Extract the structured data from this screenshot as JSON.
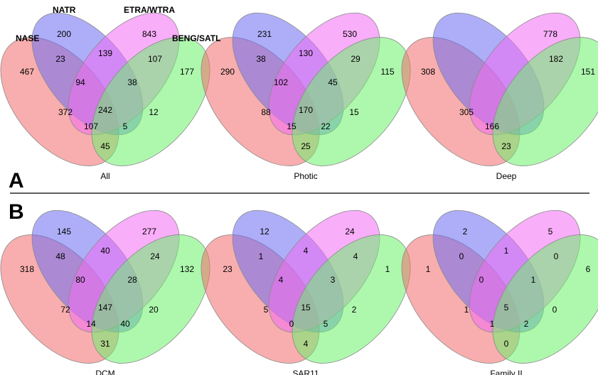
{
  "set_labels": {
    "nase": "NASE",
    "natr": "NATR",
    "etra": "ETRA/WTRA",
    "beng": "BENG/SATL"
  },
  "panel_labels": {
    "a": "A",
    "b": "B"
  },
  "colors": {
    "nase": "#f26b6b",
    "natr": "#6b6bf2",
    "etra": "#f26bf2",
    "beng": "#6bf26b"
  },
  "diagrams": [
    {
      "caption": "All",
      "regions": {
        "A": "467",
        "B": "200",
        "C": "843",
        "D": "177",
        "AB": "23",
        "BC": "139",
        "CD": "107",
        "ABC": "94",
        "BCD": "38",
        "AC": "372",
        "ABCD": "242",
        "BD": "12",
        "ACD": "107",
        "ABD": "5",
        "AD": "45"
      }
    },
    {
      "caption": "Photic",
      "regions": {
        "A": "290",
        "B": "231",
        "C": "530",
        "D": "115",
        "AB": "38",
        "BC": "130",
        "CD": "29",
        "ABC": "102",
        "BCD": "45",
        "AC": "88",
        "ABCD": "170",
        "BD": "15",
        "ACD": "15",
        "ABD": "22",
        "AD": "25"
      }
    },
    {
      "caption": "Deep",
      "regions": {
        "A": "308",
        "B": "",
        "C": "778",
        "D": "151",
        "AB": "",
        "BC": "",
        "CD": "182",
        "ABC": "",
        "BCD": "",
        "AC": "305",
        "ABCD": "",
        "BD": "",
        "ACD": "166",
        "ABD": "",
        "AD": "23"
      }
    },
    {
      "caption": "DCM",
      "regions": {
        "A": "318",
        "B": "145",
        "C": "277",
        "D": "132",
        "AB": "48",
        "BC": "40",
        "CD": "24",
        "ABC": "80",
        "BCD": "28",
        "AC": "72",
        "ABCD": "147",
        "BD": "20",
        "ACD": "14",
        "ABD": "40",
        "AD": "31"
      }
    },
    {
      "caption": "SAR11",
      "regions": {
        "A": "23",
        "B": "12",
        "C": "24",
        "D": "1",
        "AB": "1",
        "BC": "4",
        "CD": "4",
        "ABC": "4",
        "BCD": "3",
        "AC": "5",
        "ABCD": "15",
        "BD": "2",
        "ACD": "0",
        "ABD": "5",
        "AD": "4"
      }
    },
    {
      "caption": "Family II",
      "regions": {
        "A": "1",
        "B": "2",
        "C": "5",
        "D": "6",
        "AB": "0",
        "BC": "1",
        "CD": "0",
        "ABC": "0",
        "BCD": "1",
        "AC": "1",
        "ABCD": "5",
        "BD": "0",
        "ACD": "1",
        "ABD": "2",
        "AD": "0"
      }
    }
  ]
}
